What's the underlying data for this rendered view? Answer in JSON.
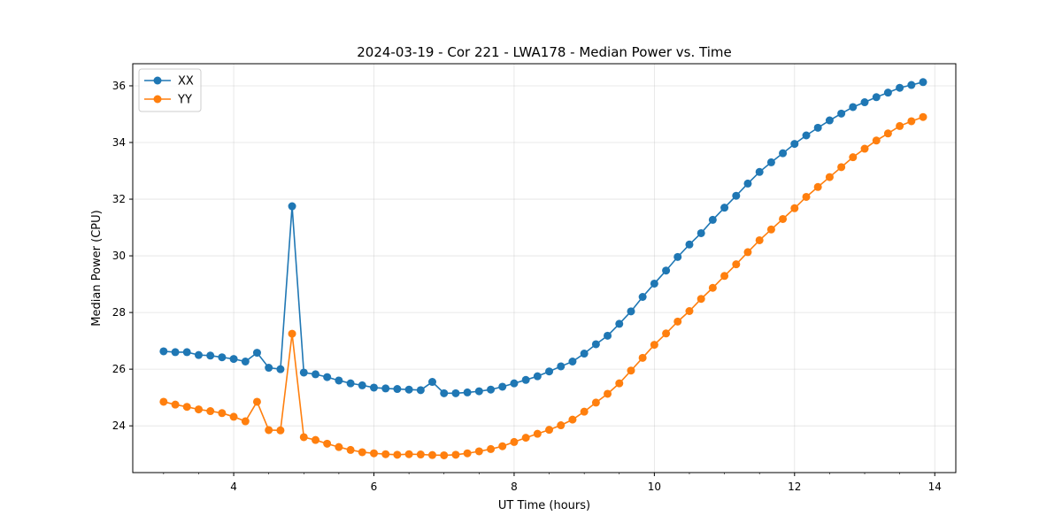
{
  "chart_data": {
    "type": "line",
    "title": "2024-03-19 - Cor 221 - LWA178 - Median Power vs. Time",
    "xlabel": "UT Time (hours)",
    "ylabel": "Median Power (CPU)",
    "xlim": [
      2.56,
      14.3
    ],
    "ylim": [
      22.35,
      36.78
    ],
    "xticks": [
      4,
      6,
      8,
      10,
      12,
      14
    ],
    "xtick_labels": [
      "4",
      "6",
      "8",
      "10",
      "12",
      "14"
    ],
    "yticks": [
      24,
      26,
      28,
      30,
      32,
      34,
      36
    ],
    "ytick_labels": [
      "24",
      "26",
      "28",
      "30",
      "32",
      "34",
      "36"
    ],
    "grid": true,
    "legend_position": "top-left",
    "x": [
      3.0,
      3.167,
      3.333,
      3.5,
      3.667,
      3.833,
      4.0,
      4.167,
      4.333,
      4.5,
      4.667,
      4.833,
      5.0,
      5.167,
      5.333,
      5.5,
      5.667,
      5.833,
      6.0,
      6.167,
      6.333,
      6.5,
      6.667,
      6.833,
      7.0,
      7.167,
      7.333,
      7.5,
      7.667,
      7.833,
      8.0,
      8.167,
      8.333,
      8.5,
      8.667,
      8.833,
      9.0,
      9.167,
      9.333,
      9.5,
      9.667,
      9.833,
      10.0,
      10.167,
      10.333,
      10.5,
      10.667,
      10.833,
      11.0,
      11.167,
      11.333,
      11.5,
      11.667,
      11.833,
      12.0,
      12.167,
      12.333,
      12.5,
      12.667,
      12.833,
      13.0,
      13.167,
      13.333,
      13.5,
      13.667,
      13.833
    ],
    "series": [
      {
        "name": "XX",
        "color": "#1f77b4",
        "values": [
          26.63,
          26.6,
          26.6,
          26.5,
          26.48,
          26.42,
          26.36,
          26.27,
          26.58,
          26.05,
          26.0,
          31.75,
          25.88,
          25.82,
          25.72,
          25.6,
          25.5,
          25.43,
          25.35,
          25.32,
          25.3,
          25.28,
          25.26,
          25.55,
          25.15,
          25.15,
          25.18,
          25.22,
          25.28,
          25.38,
          25.5,
          25.62,
          25.75,
          25.92,
          26.1,
          26.27,
          26.55,
          26.88,
          27.18,
          27.6,
          28.04,
          28.55,
          29.02,
          29.48,
          29.96,
          30.4,
          30.8,
          31.27,
          31.7,
          32.12,
          32.55,
          32.96,
          33.3,
          33.62,
          33.95,
          34.25,
          34.52,
          34.78,
          35.02,
          35.25,
          35.42,
          35.6,
          35.76,
          35.93,
          36.03,
          36.13
        ]
      },
      {
        "name": "YY",
        "color": "#ff7f0e",
        "values": [
          24.85,
          24.75,
          24.67,
          24.58,
          24.52,
          24.45,
          24.32,
          24.16,
          24.85,
          23.85,
          23.84,
          27.25,
          23.6,
          23.5,
          23.37,
          23.25,
          23.15,
          23.07,
          23.03,
          23.0,
          22.98,
          23.0,
          22.99,
          22.97,
          22.96,
          22.98,
          23.03,
          23.1,
          23.18,
          23.28,
          23.43,
          23.58,
          23.72,
          23.86,
          24.02,
          24.22,
          24.5,
          24.82,
          25.13,
          25.5,
          25.95,
          26.4,
          26.86,
          27.26,
          27.68,
          28.05,
          28.48,
          28.87,
          29.29,
          29.7,
          30.13,
          30.55,
          30.93,
          31.3,
          31.68,
          32.08,
          32.43,
          32.78,
          33.13,
          33.48,
          33.78,
          34.07,
          34.32,
          34.58,
          34.75,
          34.9
        ]
      }
    ]
  }
}
